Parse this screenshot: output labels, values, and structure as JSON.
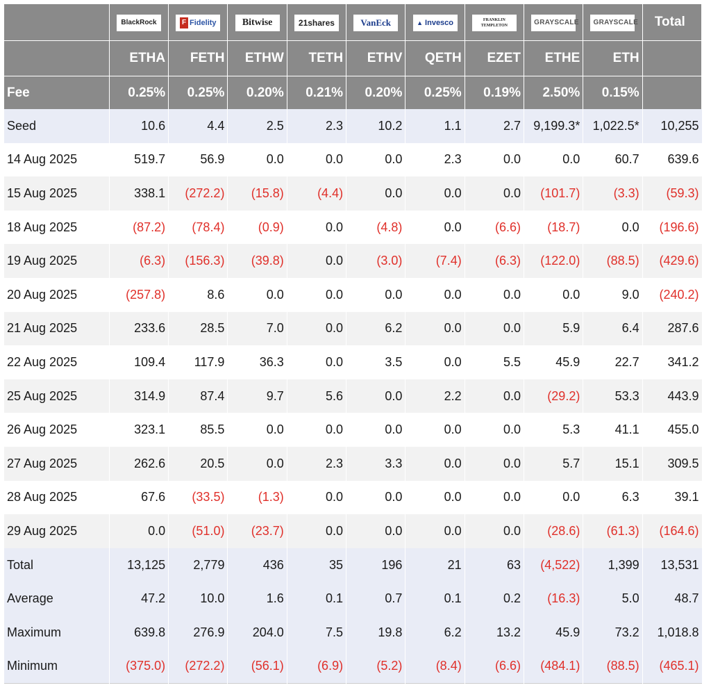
{
  "header": {
    "logos": [
      {
        "name": "blackrock",
        "text": "BlackRock"
      },
      {
        "name": "fidelity",
        "text": "Fidelity"
      },
      {
        "name": "bitwise",
        "text": "Bitwise"
      },
      {
        "name": "21shares",
        "text": "21shares"
      },
      {
        "name": "vaneck",
        "text": "VanEck"
      },
      {
        "name": "invesco",
        "text": "Invesco"
      },
      {
        "name": "franklin-templeton",
        "text": "FRANKLIN TEMPLETON"
      },
      {
        "name": "grayscale-ethe",
        "text": "GRAYSCALE"
      },
      {
        "name": "grayscale-eth",
        "text": "GRAYSCALE"
      }
    ],
    "total_label": "Total",
    "tickers": [
      "ETHA",
      "FETH",
      "ETHW",
      "TETH",
      "ETHV",
      "QETH",
      "EZET",
      "ETHE",
      "ETH"
    ],
    "fee_label": "Fee",
    "fees": [
      "0.25%",
      "0.25%",
      "0.20%",
      "0.21%",
      "0.20%",
      "0.25%",
      "0.19%",
      "2.50%",
      "0.15%"
    ]
  },
  "rows": [
    {
      "label": "Seed",
      "cells": [
        "10.6",
        "4.4",
        "2.5",
        "2.3",
        "10.2",
        "1.1",
        "2.7",
        "9,199.3*",
        "1,022.5*",
        "10,255"
      ]
    },
    {
      "label": "14 Aug 2025",
      "cells": [
        "519.7",
        "56.9",
        "0.0",
        "0.0",
        "0.0",
        "2.3",
        "0.0",
        "0.0",
        "60.7",
        "639.6"
      ]
    },
    {
      "label": "15 Aug 2025",
      "cells": [
        "338.1",
        "(272.2)",
        "(15.8)",
        "(4.4)",
        "0.0",
        "0.0",
        "0.0",
        "(101.7)",
        "(3.3)",
        "(59.3)"
      ]
    },
    {
      "label": "18 Aug 2025",
      "cells": [
        "(87.2)",
        "(78.4)",
        "(0.9)",
        "0.0",
        "(4.8)",
        "0.0",
        "(6.6)",
        "(18.7)",
        "0.0",
        "(196.6)"
      ]
    },
    {
      "label": "19 Aug 2025",
      "cells": [
        "(6.3)",
        "(156.3)",
        "(39.8)",
        "0.0",
        "(3.0)",
        "(7.4)",
        "(6.3)",
        "(122.0)",
        "(88.5)",
        "(429.6)"
      ]
    },
    {
      "label": "20 Aug 2025",
      "cells": [
        "(257.8)",
        "8.6",
        "0.0",
        "0.0",
        "0.0",
        "0.0",
        "0.0",
        "0.0",
        "9.0",
        "(240.2)"
      ]
    },
    {
      "label": "21 Aug 2025",
      "cells": [
        "233.6",
        "28.5",
        "7.0",
        "0.0",
        "6.2",
        "0.0",
        "0.0",
        "5.9",
        "6.4",
        "287.6"
      ]
    },
    {
      "label": "22 Aug 2025",
      "cells": [
        "109.4",
        "117.9",
        "36.3",
        "0.0",
        "3.5",
        "0.0",
        "5.5",
        "45.9",
        "22.7",
        "341.2"
      ]
    },
    {
      "label": "25 Aug 2025",
      "cells": [
        "314.9",
        "87.4",
        "9.7",
        "5.6",
        "0.0",
        "2.2",
        "0.0",
        "(29.2)",
        "53.3",
        "443.9"
      ]
    },
    {
      "label": "26 Aug 2025",
      "cells": [
        "323.1",
        "85.5",
        "0.0",
        "0.0",
        "0.0",
        "0.0",
        "0.0",
        "5.3",
        "41.1",
        "455.0"
      ]
    },
    {
      "label": "27 Aug 2025",
      "cells": [
        "262.6",
        "20.5",
        "0.0",
        "2.3",
        "3.3",
        "0.0",
        "0.0",
        "5.7",
        "15.1",
        "309.5"
      ]
    },
    {
      "label": "28 Aug 2025",
      "cells": [
        "67.6",
        "(33.5)",
        "(1.3)",
        "0.0",
        "0.0",
        "0.0",
        "0.0",
        "0.0",
        "6.3",
        "39.1"
      ]
    },
    {
      "label": "29 Aug 2025",
      "cells": [
        "0.0",
        "(51.0)",
        "(23.7)",
        "0.0",
        "0.0",
        "0.0",
        "0.0",
        "(28.6)",
        "(61.3)",
        "(164.6)"
      ]
    },
    {
      "label": "Total",
      "cells": [
        "13,125",
        "2,779",
        "436",
        "35",
        "196",
        "21",
        "63",
        "(4,522)",
        "1,399",
        "13,531"
      ]
    },
    {
      "label": "Average",
      "cells": [
        "47.2",
        "10.0",
        "1.6",
        "0.1",
        "0.7",
        "0.1",
        "0.2",
        "(16.3)",
        "5.0",
        "48.7"
      ]
    },
    {
      "label": "Maximum",
      "cells": [
        "639.8",
        "276.9",
        "204.0",
        "7.5",
        "19.8",
        "6.2",
        "13.2",
        "45.9",
        "73.2",
        "1,018.8"
      ]
    },
    {
      "label": "Minimum",
      "cells": [
        "(375.0)",
        "(272.2)",
        "(56.1)",
        "(6.9)",
        "(5.2)",
        "(8.4)",
        "(6.6)",
        "(484.1)",
        "(88.5)",
        "(465.1)"
      ]
    }
  ],
  "colors": {
    "header_bg": "#8a8a8a",
    "summary_bg": "#e9ecf6",
    "stripe_bg": "#f2f2f2",
    "negative": "#e0302a"
  }
}
